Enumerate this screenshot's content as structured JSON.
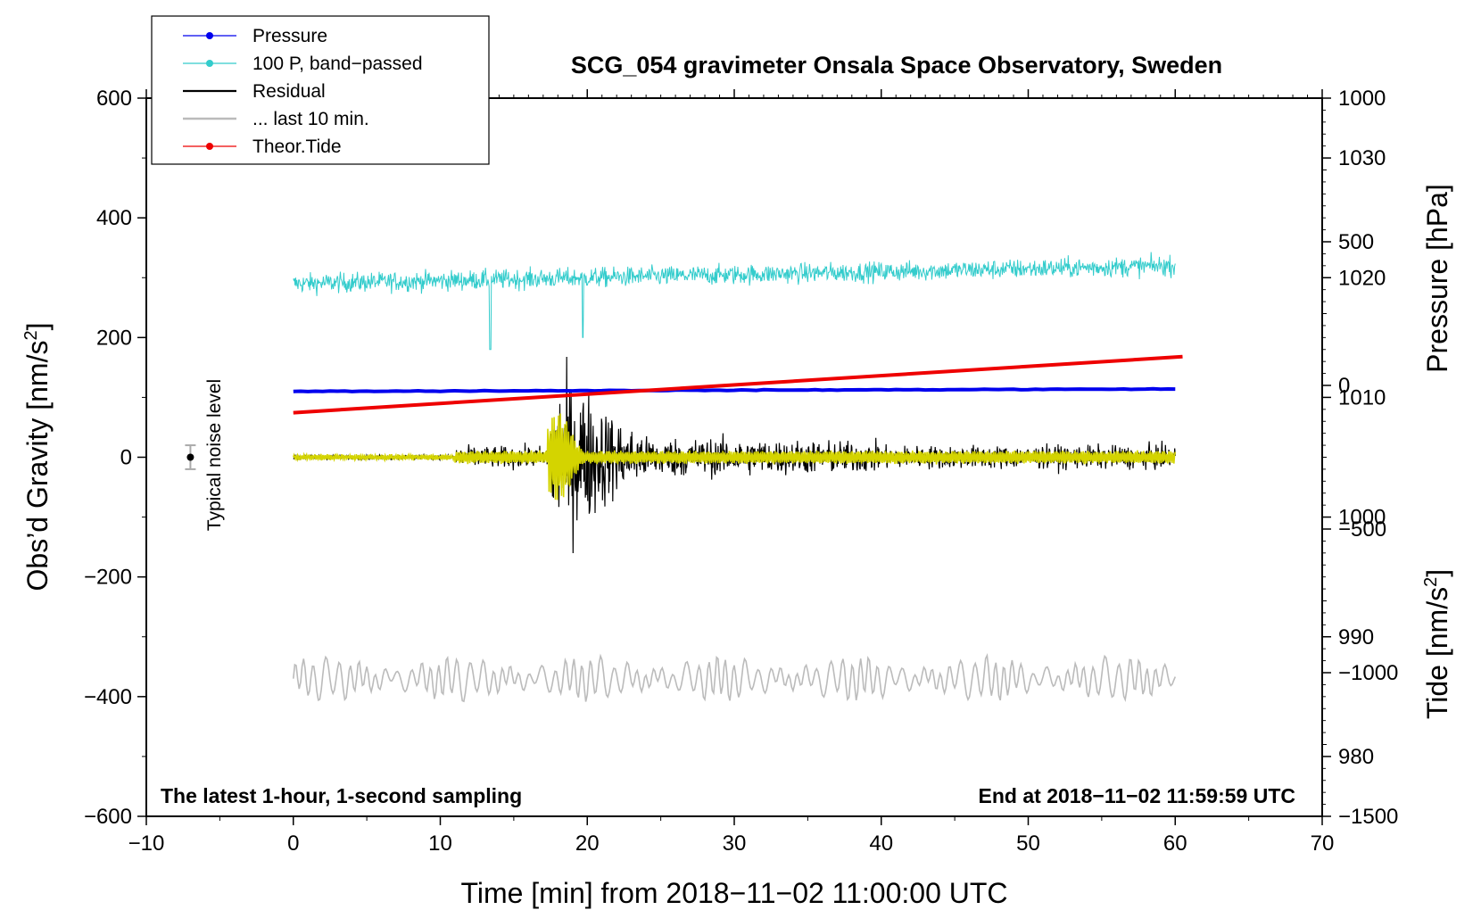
{
  "chart_data": {
    "type": "line",
    "title": "SCG_054 gravimeter Onsala Space Observatory, Sweden",
    "xlabel": "Time [min] from 2018−11−02 11:00:00 UTC",
    "ylabel_left": "Obs’d Gravity [nm/s",
    "ylabel_left_sup": "2",
    "ylabel_left_end": "]",
    "ylabel_right_pressure": "Pressure [hPa]",
    "ylabel_right_tide": "Tide [nm/s",
    "ylabel_right_tide_sup": "2",
    "ylabel_right_tide_end": "]",
    "xlim": [
      -10,
      70
    ],
    "ylim": [
      -600,
      600
    ],
    "pressure_lim": [
      975,
      1035
    ],
    "tide_lim": [
      -1500,
      1000
    ],
    "x_ticks": [
      "−10",
      "0",
      "10",
      "20",
      "30",
      "40",
      "50",
      "60",
      "70"
    ],
    "y_ticks": [
      "600",
      "400",
      "200",
      "0",
      "−200",
      "−400",
      "−600"
    ],
    "pressure_ticks": [
      "1030",
      "1020",
      "1010",
      "1000",
      "990",
      "980"
    ],
    "tide_ticks": [
      "1000",
      "500",
      "0",
      "−500",
      "−1000",
      "−1500"
    ],
    "note_left": "The latest 1-hour, 1-second sampling",
    "note_right": "End at 2018−11−02 11:59:59 UTC",
    "noise_label": "Typical noise level",
    "noise_bar": {
      "x": -7,
      "center": 0,
      "half_range": 20
    },
    "legend": [
      {
        "label": "Pressure",
        "color": "#0000ee",
        "marker": true
      },
      {
        "label": "100 P, band−passed",
        "color": "#33cccc",
        "marker": true
      },
      {
        "label": "Residual",
        "color": "#000000",
        "marker": false
      },
      {
        "label": "... last 10 min.",
        "color": "#bbbbbb",
        "marker": false
      },
      {
        "label": "Theor.Tide",
        "color": "#ee0000",
        "marker": true
      }
    ],
    "series": [
      {
        "name": "Pressure",
        "axis": "pressure",
        "color": "#0000ee",
        "x": [
          0,
          60
        ],
        "values": [
          1010.5,
          1010.7
        ]
      },
      {
        "name": "Theor.Tide",
        "axis": "tide",
        "color": "#ee0000",
        "x": [
          0,
          60.5
        ],
        "values": [
          -95,
          100
        ]
      },
      {
        "name": "100 P, band−passed",
        "axis": "gravity",
        "color": "#33cccc",
        "mean_value": 300,
        "x_range": [
          0,
          60
        ]
      },
      {
        "name": "Residual",
        "axis": "gravity",
        "color": "#000000",
        "mean_value": 0,
        "max_value": 200,
        "min_value": -210,
        "x_range": [
          0,
          60
        ]
      },
      {
        "name": "... last 10 min.",
        "axis": "gravity",
        "color": "#bbbbbb",
        "mean_value": -370,
        "x_range": [
          0,
          60
        ]
      }
    ]
  },
  "colors": {
    "filtered": "#d4d400"
  }
}
